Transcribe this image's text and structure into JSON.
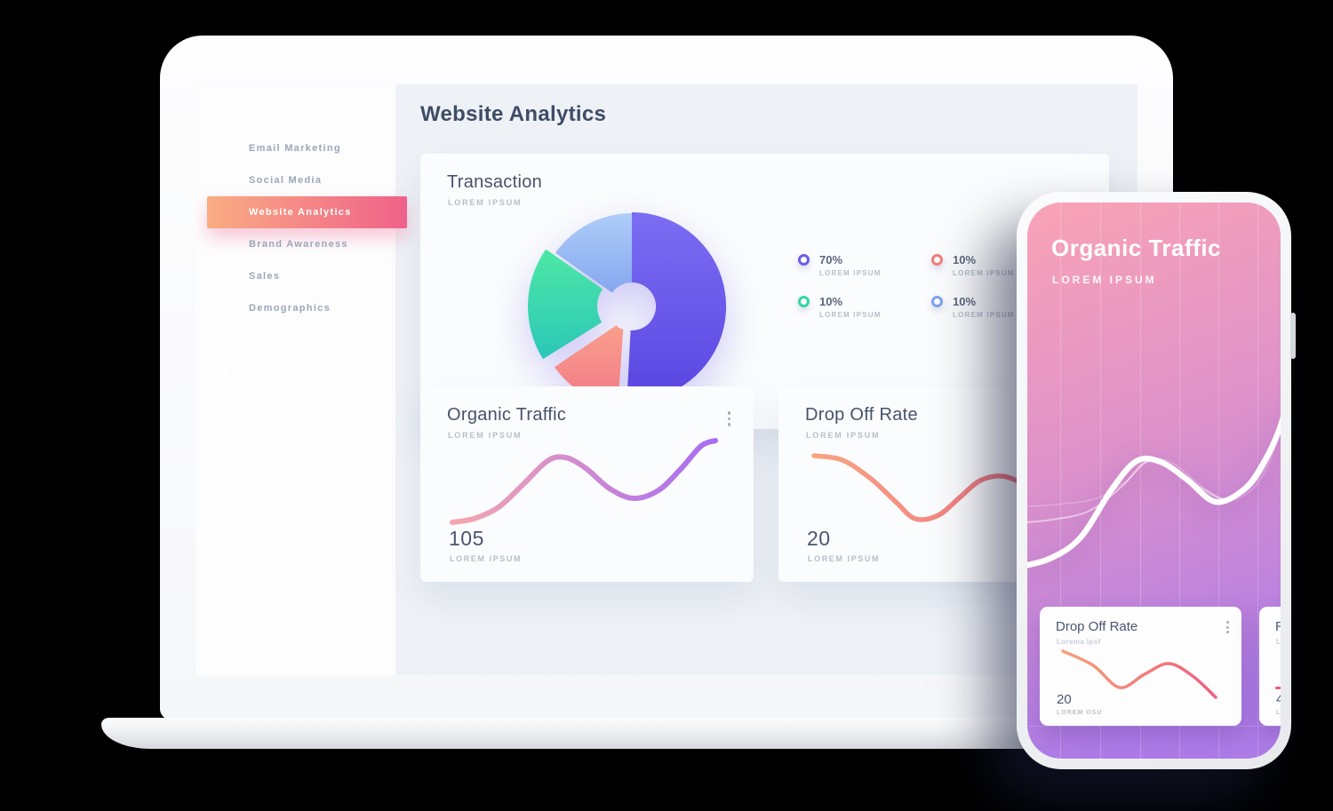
{
  "theme": {
    "accent_from": "#F9AC82",
    "accent_to": "#F0618A",
    "heading": "#3E4C66",
    "card_title": "#47536B",
    "muted": "#B6BEC9",
    "sidebar_text": "#9AA7B8",
    "stat": "#4A5670",
    "main_bg": "#EEF1F6",
    "card_bg": "#FBFCFD",
    "phone_from": "#F9A3B6",
    "phone_mid": "#DE92C9",
    "phone_to": "#AE7CE7"
  },
  "laptop": {
    "header": {
      "title": "Website Analytics"
    },
    "sidebar": {
      "items": [
        {
          "label": "Email Marketing",
          "active": false
        },
        {
          "label": "Social Media",
          "active": false
        },
        {
          "label": "Website Analytics",
          "active": true
        },
        {
          "label": "Brand Awareness",
          "active": false
        },
        {
          "label": "Sales",
          "active": false
        },
        {
          "label": "Demographics",
          "active": false
        }
      ]
    },
    "transaction_card": {
      "title": "Transaction",
      "subtitle": "LOREM IPSUM",
      "legend": [
        {
          "percent": "70%",
          "label": "LOREM IPSUM",
          "color": "#6C5CE8"
        },
        {
          "percent": "10%",
          "label": "LOREM IPSUM",
          "color": "#F47B7B"
        },
        {
          "percent": "10%",
          "label": "LOREM IPSUM",
          "color": "#2FD7A4"
        },
        {
          "percent": "10%",
          "label": "LOREM IPSUM",
          "color": "#7FA3F0"
        }
      ]
    },
    "organic_card": {
      "title": "Organic Traffic",
      "subtitle": "LOREM IPSUM",
      "stat": "105",
      "stat_label": "LOREM IPSUM"
    },
    "dropoff_card": {
      "title": "Drop Off Rate",
      "subtitle": "LOREM IPSUM",
      "stat": "20",
      "stat_label": "LOREM IPSUM"
    }
  },
  "phone": {
    "title": "Organic Traffic",
    "subtitle": "LOREM IPSUM",
    "cards": [
      {
        "title": "Drop Off Rate",
        "subtitle": "Lorema Ipsf",
        "stat": "20",
        "stat_label": "LOREM OSU"
      },
      {
        "title": "R",
        "subtitle": "Lo",
        "stat": "4",
        "stat_label": "LO"
      }
    ]
  },
  "chart_data": [
    {
      "id": "transaction-donut",
      "type": "donut",
      "title": "Transaction",
      "values": [
        70,
        10,
        10,
        10
      ],
      "labels": [
        "LOREM IPSUM",
        "LOREM IPSUM",
        "LOREM IPSUM",
        "LOREM IPSUM"
      ],
      "colors": [
        "#6C5CE8",
        "#F47B7B",
        "#2FD7A4",
        "#7FA3F0"
      ],
      "legend_position": "right",
      "segments": [
        {
          "percent": 70,
          "start": 0,
          "end": 183,
          "inner": 27,
          "outer": 106,
          "explode": 0,
          "from": "#7C6DF2",
          "to": "#5A46E2"
        },
        {
          "percent": 10,
          "start": 184,
          "end": 236,
          "inner": 10,
          "outer": 94,
          "explode": 18,
          "from": "#F99E8B",
          "to": "#F27B88"
        },
        {
          "percent": 10,
          "start": 238,
          "end": 305,
          "inner": 34,
          "outer": 112,
          "explode": 5,
          "from": "#4DE7A5",
          "to": "#2BC7B8"
        },
        {
          "percent": 10,
          "start": 305,
          "end": 360,
          "inner": 27,
          "outer": 105,
          "explode": 0,
          "from": "#AECDF8",
          "to": "#85A7EF"
        }
      ]
    },
    {
      "id": "organic-line",
      "type": "line",
      "title": "Organic Traffic",
      "stroke_width": 6,
      "gradient": [
        "#F6A7AE",
        "#A76DF2"
      ],
      "points": [
        [
          8,
          101
        ],
        [
          32,
          97
        ],
        [
          60,
          84
        ],
        [
          88,
          58
        ],
        [
          115,
          32
        ],
        [
          135,
          28
        ],
        [
          158,
          40
        ],
        [
          185,
          63
        ],
        [
          212,
          74
        ],
        [
          240,
          65
        ],
        [
          265,
          41
        ],
        [
          288,
          15
        ],
        [
          304,
          9
        ]
      ]
    },
    {
      "id": "dropoff-line",
      "type": "line",
      "title": "Drop Off Rate",
      "stroke_width": 5.5,
      "gradient": [
        "#F8A482",
        "#EF6F82"
      ],
      "points": [
        [
          8,
          26
        ],
        [
          40,
          31
        ],
        [
          72,
          52
        ],
        [
          100,
          78
        ],
        [
          122,
          97
        ],
        [
          148,
          93
        ],
        [
          172,
          73
        ],
        [
          195,
          54
        ],
        [
          220,
          49
        ],
        [
          245,
          57
        ],
        [
          268,
          58
        ]
      ]
    },
    {
      "id": "phone-wave",
      "type": "line",
      "title": "Organic Traffic",
      "stroke_width": 6.5,
      "gradient": [
        "#FFFFFF",
        "#FFFFFF"
      ],
      "points": [
        [
          -14,
          182
        ],
        [
          25,
          172
        ],
        [
          60,
          148
        ],
        [
          95,
          94
        ],
        [
          123,
          62
        ],
        [
          150,
          63
        ],
        [
          180,
          83
        ],
        [
          212,
          108
        ],
        [
          245,
          93
        ],
        [
          267,
          62
        ],
        [
          283,
          28
        ],
        [
          294,
          -8
        ]
      ],
      "echoes": [
        {
          "width": 2,
          "opacity": 0.5,
          "points": [
            [
              -14,
              132
            ],
            [
              28,
              128
            ],
            [
              70,
              118
            ],
            [
              107,
              90
            ],
            [
              132,
              64
            ],
            [
              156,
              65
            ],
            [
              192,
              90
            ],
            [
              224,
              105
            ],
            [
              254,
              88
            ],
            [
              275,
              52
            ],
            [
              290,
              10
            ]
          ]
        },
        {
          "width": 1.3,
          "opacity": 0.28,
          "points": [
            [
              -14,
              114
            ],
            [
              32,
              111
            ],
            [
              78,
              104
            ],
            [
              112,
              84
            ],
            [
              137,
              62
            ],
            [
              163,
              64
            ],
            [
              200,
              93
            ],
            [
              230,
              106
            ],
            [
              260,
              86
            ],
            [
              280,
              44
            ],
            [
              292,
              4
            ]
          ]
        }
      ]
    },
    {
      "id": "phone-dropoff-line",
      "type": "line",
      "title": "Drop Off Rate",
      "stroke_width": 3.5,
      "gradient": [
        "#F6A277",
        "#EF5F80"
      ],
      "points": [
        [
          16,
          4
        ],
        [
          50,
          20
        ],
        [
          80,
          45
        ],
        [
          108,
          30
        ],
        [
          135,
          18
        ],
        [
          162,
          32
        ],
        [
          188,
          56
        ]
      ]
    }
  ]
}
